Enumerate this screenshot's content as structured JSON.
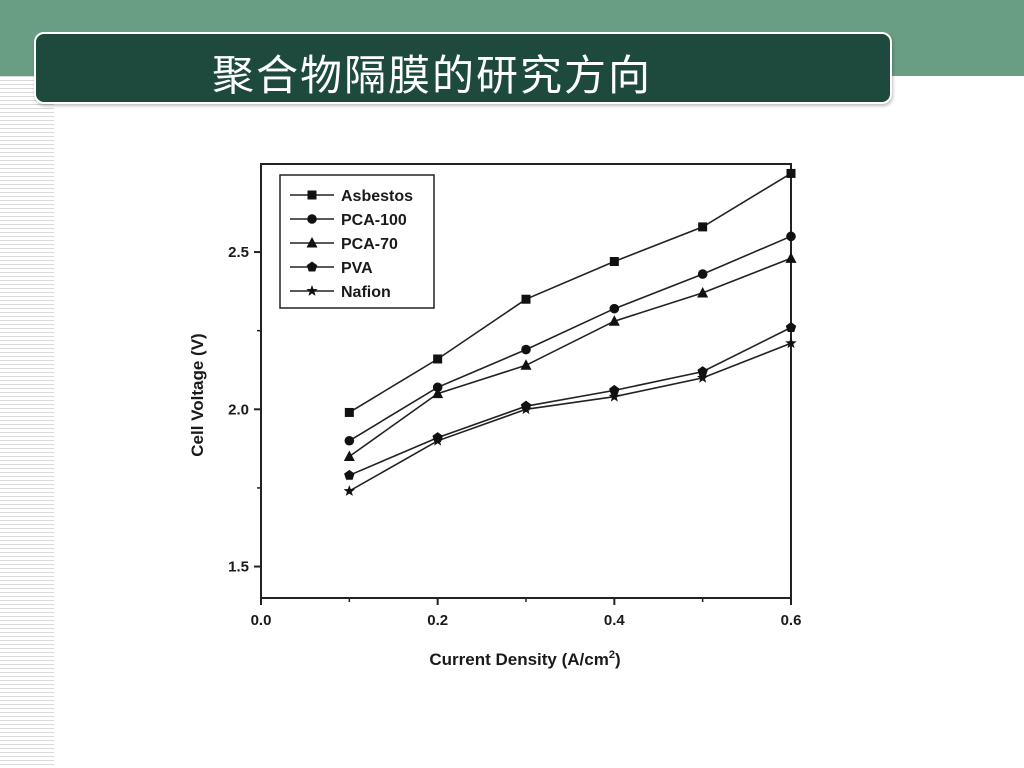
{
  "slide": {
    "title": "聚合物隔膜的研究方向",
    "colors": {
      "band": "#6a9e84",
      "title_bar": "#1e4a3e",
      "title_text": "#ffffff"
    }
  },
  "chart_data": {
    "type": "line",
    "xlabel": "Current Density (A/cm",
    "xlabel_sup": "2",
    "xlabel_close": ")",
    "ylabel": "Cell Voltage (V)",
    "xlim": [
      0.0,
      0.6
    ],
    "ylim": [
      1.4,
      2.78
    ],
    "x_ticks": [
      "0.0",
      "0.2",
      "0.4",
      "0.6"
    ],
    "y_ticks": [
      "1.5",
      "2.0",
      "2.5"
    ],
    "legend_position": "top-left",
    "grid": false,
    "x": [
      0.1,
      0.2,
      0.3,
      0.4,
      0.5,
      0.6
    ],
    "series": [
      {
        "name": "Asbestos",
        "marker": "square",
        "values": [
          1.99,
          2.16,
          2.35,
          2.47,
          2.58,
          2.75
        ]
      },
      {
        "name": "PCA-100",
        "marker": "circle",
        "values": [
          1.9,
          2.07,
          2.19,
          2.32,
          2.43,
          2.55
        ]
      },
      {
        "name": "PCA-70",
        "marker": "triangle",
        "values": [
          1.85,
          2.05,
          2.14,
          2.28,
          2.37,
          2.48
        ]
      },
      {
        "name": "PVA",
        "marker": "pentagon",
        "values": [
          1.79,
          1.91,
          2.01,
          2.06,
          2.12,
          2.26
        ]
      },
      {
        "name": "Nafion",
        "marker": "star",
        "values": [
          1.74,
          1.9,
          2.0,
          2.04,
          2.1,
          2.21
        ]
      }
    ]
  }
}
